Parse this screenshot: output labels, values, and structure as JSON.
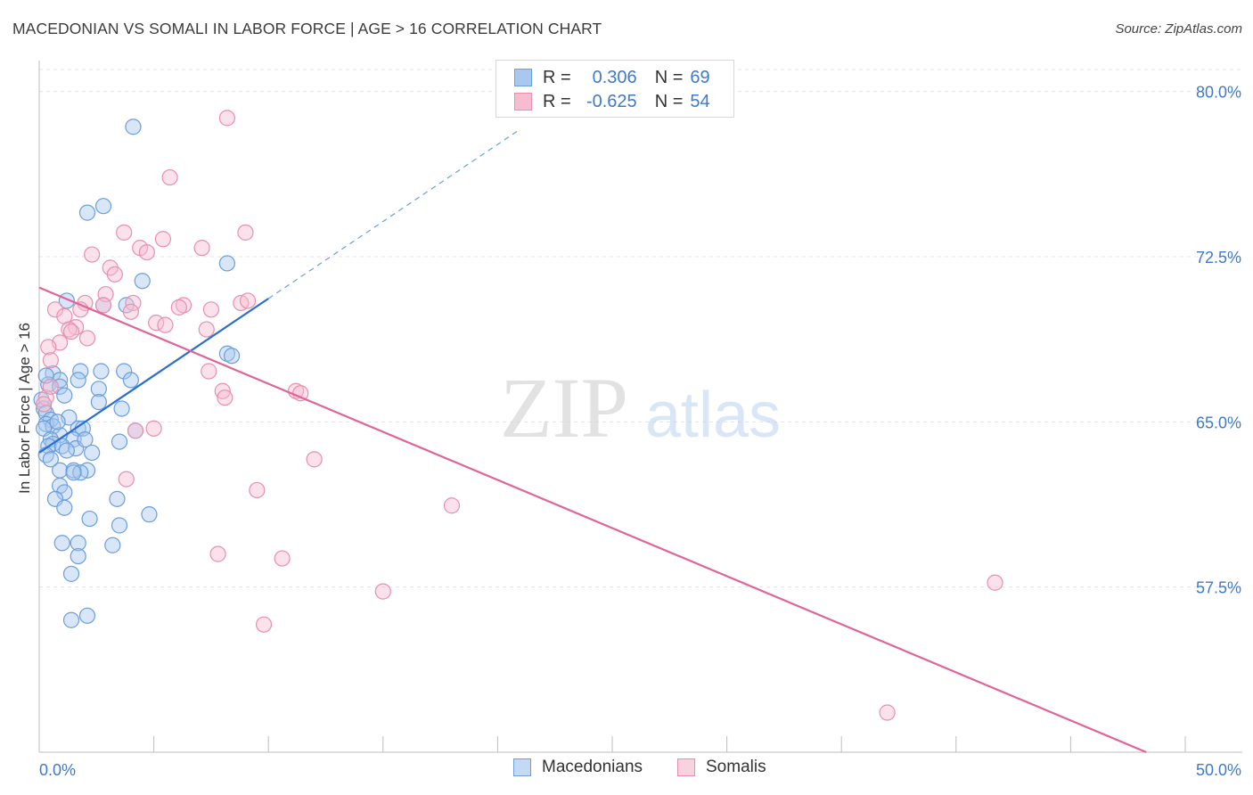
{
  "header": {
    "title": "MACEDONIAN VS SOMALI IN LABOR FORCE | AGE > 16 CORRELATION CHART",
    "source": "Source: ZipAtlas.com"
  },
  "watermark": {
    "zip": "ZIP",
    "atlas": "atlas"
  },
  "legend_top": {
    "rows": [
      {
        "r_label": "R =",
        "r_value": "0.306",
        "n_label": "N =",
        "n_value": "69"
      },
      {
        "r_label": "R =",
        "r_value": "-0.625",
        "n_label": "N =",
        "n_value": "54"
      }
    ]
  },
  "legend_bottom": {
    "items": [
      "Macedonians",
      "Somalis"
    ]
  },
  "colors": {
    "macedonians_fill": "#a9c8ee",
    "macedonians_stroke": "#6a9fdc",
    "macedonians_line": "#2a6fd0",
    "somalis_fill": "#f6bdd0",
    "somalis_stroke": "#e88fae",
    "somalis_line": "#e0649a",
    "axis_label": "#3f79c9",
    "grid": "#e4e4e4"
  },
  "chart_data": {
    "type": "scatter",
    "title": "MACEDONIAN VS SOMALI IN LABOR FORCE | AGE > 16 CORRELATION CHART",
    "xlabel": "",
    "ylabel": "In Labor Force | Age > 16",
    "xlim": [
      0,
      50
    ],
    "ylim": [
      50.0,
      81.0
    ],
    "x_tick_labels": [
      "0.0%",
      "50.0%"
    ],
    "y_ticks": [
      57.5,
      65.0,
      72.5,
      80.0
    ],
    "y_tick_labels": [
      "57.5%",
      "65.0%",
      "72.5%",
      "80.0%"
    ],
    "grid": true,
    "legend_position": "bottom",
    "series": [
      {
        "name": "Macedonians",
        "r": 0.306,
        "n": 69,
        "trend": {
          "x": [
            0.0,
            10.0
          ],
          "y": [
            63.6,
            70.6
          ],
          "dashed_to": {
            "x": 21.0,
            "y": 78.3
          }
        },
        "points": [
          [
            4.1,
            78.4
          ],
          [
            2.8,
            74.8
          ],
          [
            2.1,
            74.5
          ],
          [
            8.2,
            72.2
          ],
          [
            4.5,
            71.4
          ],
          [
            1.2,
            70.5
          ],
          [
            2.8,
            70.3
          ],
          [
            3.8,
            70.3
          ],
          [
            8.2,
            68.1
          ],
          [
            8.4,
            68.0
          ],
          [
            1.8,
            67.3
          ],
          [
            2.7,
            67.3
          ],
          [
            3.7,
            67.3
          ],
          [
            0.6,
            67.2
          ],
          [
            0.9,
            66.9
          ],
          [
            1.7,
            66.9
          ],
          [
            4.0,
            66.9
          ],
          [
            0.4,
            66.7
          ],
          [
            0.9,
            66.6
          ],
          [
            2.6,
            66.5
          ],
          [
            1.1,
            66.2
          ],
          [
            0.1,
            66.0
          ],
          [
            2.6,
            65.9
          ],
          [
            0.2,
            65.6
          ],
          [
            3.6,
            65.6
          ],
          [
            0.3,
            65.4
          ],
          [
            1.3,
            65.2
          ],
          [
            0.5,
            65.1
          ],
          [
            0.3,
            64.9
          ],
          [
            0.6,
            64.8
          ],
          [
            0.2,
            64.7
          ],
          [
            1.7,
            64.7
          ],
          [
            1.9,
            64.7
          ],
          [
            4.2,
            64.6
          ],
          [
            0.9,
            64.4
          ],
          [
            0.5,
            64.2
          ],
          [
            1.5,
            64.2
          ],
          [
            3.5,
            64.1
          ],
          [
            0.6,
            64.0
          ],
          [
            0.4,
            63.9
          ],
          [
            1.0,
            63.9
          ],
          [
            1.6,
            63.8
          ],
          [
            1.2,
            63.7
          ],
          [
            2.3,
            63.6
          ],
          [
            0.3,
            63.5
          ],
          [
            0.9,
            62.8
          ],
          [
            1.5,
            62.8
          ],
          [
            2.1,
            62.8
          ],
          [
            1.8,
            62.7
          ],
          [
            1.5,
            62.7
          ],
          [
            0.9,
            62.1
          ],
          [
            1.1,
            61.8
          ],
          [
            3.4,
            61.5
          ],
          [
            0.7,
            61.5
          ],
          [
            1.1,
            61.1
          ],
          [
            4.8,
            60.8
          ],
          [
            2.2,
            60.6
          ],
          [
            3.5,
            60.3
          ],
          [
            1.0,
            59.5
          ],
          [
            1.7,
            59.5
          ],
          [
            3.2,
            59.4
          ],
          [
            1.7,
            58.9
          ],
          [
            1.4,
            58.1
          ],
          [
            2.1,
            56.2
          ],
          [
            1.4,
            56.0
          ],
          [
            0.3,
            67.1
          ],
          [
            0.8,
            65.0
          ],
          [
            2.0,
            64.2
          ],
          [
            0.5,
            63.3
          ]
        ]
      },
      {
        "name": "Somalis",
        "r": -0.625,
        "n": 54,
        "trend": {
          "x": [
            0.0,
            48.3
          ],
          "y": [
            71.1,
            50.0
          ]
        },
        "points": [
          [
            8.2,
            78.8
          ],
          [
            5.7,
            76.1
          ],
          [
            3.7,
            73.6
          ],
          [
            9.0,
            73.6
          ],
          [
            5.4,
            73.3
          ],
          [
            7.1,
            72.9
          ],
          [
            4.4,
            72.9
          ],
          [
            4.7,
            72.7
          ],
          [
            2.3,
            72.6
          ],
          [
            3.1,
            72.0
          ],
          [
            3.3,
            71.7
          ],
          [
            2.9,
            70.8
          ],
          [
            2.0,
            70.4
          ],
          [
            2.8,
            70.3
          ],
          [
            8.8,
            70.4
          ],
          [
            9.1,
            70.5
          ],
          [
            4.1,
            70.4
          ],
          [
            6.3,
            70.3
          ],
          [
            6.1,
            70.2
          ],
          [
            7.5,
            70.1
          ],
          [
            0.7,
            70.1
          ],
          [
            1.8,
            70.1
          ],
          [
            4.0,
            70.0
          ],
          [
            1.1,
            69.8
          ],
          [
            5.1,
            69.5
          ],
          [
            5.5,
            69.4
          ],
          [
            1.6,
            69.3
          ],
          [
            1.3,
            69.2
          ],
          [
            1.4,
            69.1
          ],
          [
            7.3,
            69.2
          ],
          [
            2.1,
            68.8
          ],
          [
            0.9,
            68.6
          ],
          [
            0.4,
            68.4
          ],
          [
            0.5,
            67.8
          ],
          [
            7.4,
            67.3
          ],
          [
            8.0,
            66.4
          ],
          [
            11.2,
            66.4
          ],
          [
            11.4,
            66.3
          ],
          [
            8.1,
            66.1
          ],
          [
            0.3,
            66.1
          ],
          [
            0.5,
            66.6
          ],
          [
            5.0,
            64.7
          ],
          [
            4.2,
            64.6
          ],
          [
            12.0,
            63.3
          ],
          [
            3.8,
            62.4
          ],
          [
            9.5,
            61.9
          ],
          [
            18.0,
            61.2
          ],
          [
            7.8,
            59.0
          ],
          [
            10.6,
            58.8
          ],
          [
            15.0,
            57.3
          ],
          [
            41.7,
            57.7
          ],
          [
            9.8,
            55.8
          ],
          [
            37.0,
            51.8
          ],
          [
            0.2,
            65.8
          ]
        ]
      }
    ]
  }
}
